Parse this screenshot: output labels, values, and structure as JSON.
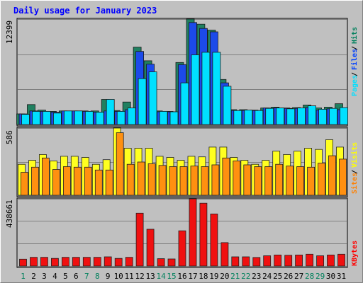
{
  "chart_data": {
    "type": "bar",
    "title": "Daily usage for January 2023",
    "categories": [
      "1",
      "2",
      "3",
      "4",
      "5",
      "6",
      "7",
      "8",
      "9",
      "10",
      "11",
      "12",
      "13",
      "14",
      "15",
      "16",
      "17",
      "18",
      "19",
      "20",
      "21",
      "22",
      "23",
      "24",
      "25",
      "26",
      "27",
      "28",
      "29",
      "30",
      "31"
    ],
    "weekend_days": [
      1,
      7,
      8,
      14,
      15,
      21,
      22,
      28,
      29
    ],
    "panels": [
      {
        "id": "top",
        "axis_max_label": "12399",
        "ylim": [
          0,
          12399
        ],
        "legend": [
          "Pages",
          "Files",
          "Hits"
        ],
        "legend_colors": [
          "#00e0ff",
          "#0040ff",
          "#00805c"
        ],
        "series": [
          {
            "name": "Hits",
            "color": "#208060",
            "values": [
              1250,
              2350,
              1700,
              1550,
              1600,
              1600,
              1600,
              1600,
              2950,
              1650,
              2650,
              9100,
              7500,
              1600,
              1550,
              7300,
              12399,
              11800,
              11100,
              5300,
              1750,
              1750,
              1700,
              1950,
              2050,
              1950,
              2000,
              2300,
              1950,
              2050,
              2450
            ]
          },
          {
            "name": "Files",
            "color": "#1c4aea",
            "values": [
              1250,
              1600,
              1550,
              1450,
              1600,
              1600,
              1550,
              1450,
              1600,
              1550,
              1750,
              8600,
              7100,
              1500,
              1500,
              7050,
              12000,
              11300,
              10900,
              4900,
              1650,
              1650,
              1650,
              1950,
              1950,
              1900,
              1900,
              2000,
              1700,
              1850,
              1750
            ]
          },
          {
            "name": "Pages",
            "color": "#00e0ff",
            "values": [
              1200,
              1550,
              1550,
              1350,
              1600,
              1600,
              1550,
              1450,
              2950,
              1550,
              1950,
              5400,
              6200,
              1550,
              1500,
              4900,
              8200,
              8500,
              8500,
              4500,
              1650,
              1700,
              1650,
              1900,
              1950,
              1850,
              1950,
              2200,
              1800,
              1900,
              2000
            ]
          }
        ]
      },
      {
        "id": "middle",
        "axis_max_label": "586",
        "ylim": [
          0,
          586
        ],
        "legend": [
          "Sites",
          "Visits"
        ],
        "legend_colors": [
          "#ff8000",
          "#ffff00"
        ],
        "series": [
          {
            "name": "Visits",
            "color": "#ffff20",
            "values": [
              270,
              305,
              355,
              300,
              340,
              340,
              330,
              270,
              310,
              586,
              410,
              410,
              410,
              340,
              330,
              305,
              340,
              335,
              420,
              420,
              330,
              305,
              270,
              305,
              385,
              355,
              385,
              410,
              400,
              485,
              420
            ]
          },
          {
            "name": "Sites",
            "color": "#ff9010",
            "values": [
              200,
              245,
              325,
              225,
              250,
              245,
              245,
              220,
              220,
              545,
              270,
              290,
              275,
              260,
              250,
              250,
              255,
              250,
              265,
              325,
              300,
              265,
              250,
              250,
              270,
              255,
              250,
              245,
              280,
              345,
              315
            ]
          }
        ]
      },
      {
        "id": "bottom",
        "axis_max_label": "438661",
        "ylim": [
          0,
          438661
        ],
        "legend": [
          "KBytes"
        ],
        "legend_colors": [
          "#ff0000"
        ],
        "series": [
          {
            "name": "KBytes",
            "color": "#f01010",
            "values": [
              45000,
              57000,
              57000,
              50000,
              57000,
              57000,
              57000,
              57000,
              60000,
              50000,
              57000,
              345000,
              240000,
              48000,
              46000,
              230000,
              438661,
              410000,
              340000,
              153000,
              60000,
              60000,
              56000,
              67000,
              72000,
              70000,
              72000,
              77000,
              67000,
              72000,
              77000
            ]
          }
        ]
      }
    ]
  }
}
